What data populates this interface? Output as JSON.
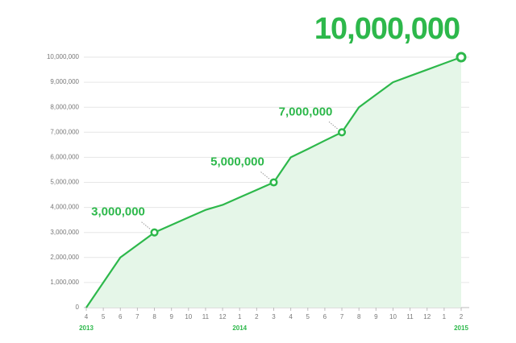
{
  "chart_data": {
    "type": "area",
    "categories": [
      "4",
      "5",
      "6",
      "7",
      "8",
      "9",
      "10",
      "11",
      "12",
      "1",
      "2",
      "3",
      "4",
      "5",
      "6",
      "7",
      "8",
      "9",
      "10",
      "11",
      "12",
      "1",
      "2"
    ],
    "x_year_labels": [
      "2013",
      null,
      null,
      null,
      null,
      null,
      null,
      null,
      null,
      "2014",
      null,
      null,
      null,
      null,
      null,
      null,
      null,
      null,
      null,
      null,
      null,
      null,
      "2015"
    ],
    "values": [
      0,
      1000000,
      2000000,
      2500000,
      3000000,
      3300000,
      3600000,
      3900000,
      4100000,
      4400000,
      4700000,
      5000000,
      6000000,
      6330000,
      6670000,
      7000000,
      8000000,
      8500000,
      9000000,
      9250000,
      9500000,
      9750000,
      10000000
    ],
    "value_labels": [
      null,
      null,
      null,
      null,
      "3,000,000",
      null,
      null,
      null,
      null,
      null,
      null,
      "5,000,000",
      null,
      null,
      null,
      "7,000,000",
      null,
      null,
      null,
      null,
      null,
      null,
      "10,000,000"
    ],
    "color": "#2db84b",
    "fill_color": "#e5f6e8",
    "ylim": [
      0,
      10000000
    ],
    "yticks": [
      0,
      {
        "value": 1000000,
        "label": "1,000,000"
      },
      {
        "value": 2000000,
        "label": "2,000,000"
      },
      {
        "value": 3000000,
        "label": "3,000,000"
      },
      {
        "value": 4000000,
        "label": "4,000,000"
      },
      {
        "value": 5000000,
        "label": "5,000,000"
      },
      {
        "value": 6000000,
        "label": "6,000,000"
      },
      {
        "value": 7000000,
        "label": "7,000,000"
      },
      {
        "value": 8000000,
        "label": "8,000,000"
      },
      {
        "value": 9000000,
        "label": "9,000,000"
      },
      {
        "value": 10000000,
        "label": "10,000,000"
      }
    ],
    "grid": true
  }
}
